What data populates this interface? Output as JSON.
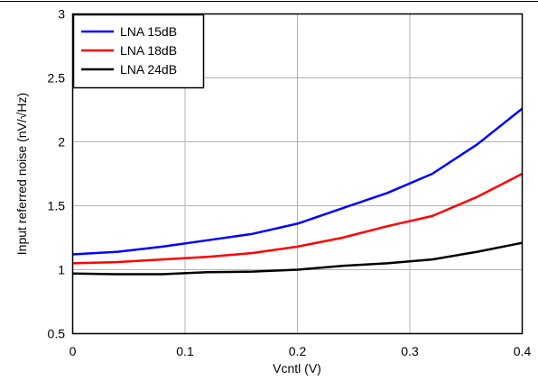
{
  "chart_data": {
    "type": "line",
    "title": "",
    "xlabel": "Vcntl (V)",
    "ylabel": "Input referred noise (nV/√Hz)",
    "xlim": [
      0,
      0.4
    ],
    "ylim": [
      0.5,
      3
    ],
    "x_ticks": [
      0,
      0.1,
      0.2,
      0.3,
      0.4
    ],
    "x_tick_labels": [
      "0",
      "0.1",
      "0.2",
      "0.3",
      "0.4"
    ],
    "y_ticks": [
      0.5,
      1,
      1.5,
      2,
      2.5,
      3
    ],
    "y_tick_labels": [
      "0.5",
      "1",
      "1.5",
      "2",
      "2.5",
      "3"
    ],
    "grid": true,
    "legend_position": "top-left",
    "series": [
      {
        "name": "LNA 15dB",
        "color": "#0000ff",
        "x": [
          0,
          0.04,
          0.08,
          0.12,
          0.16,
          0.2,
          0.24,
          0.28,
          0.32,
          0.36,
          0.4
        ],
        "values": [
          1.12,
          1.14,
          1.18,
          1.23,
          1.28,
          1.36,
          1.48,
          1.6,
          1.75,
          1.98,
          2.26
        ]
      },
      {
        "name": "LNA 18dB",
        "color": "#ff0000",
        "x": [
          0,
          0.04,
          0.08,
          0.12,
          0.16,
          0.2,
          0.24,
          0.28,
          0.32,
          0.36,
          0.4
        ],
        "values": [
          1.05,
          1.06,
          1.08,
          1.1,
          1.13,
          1.18,
          1.25,
          1.34,
          1.42,
          1.57,
          1.75
        ]
      },
      {
        "name": "LNA 24dB",
        "color": "#000000",
        "x": [
          0,
          0.04,
          0.08,
          0.12,
          0.16,
          0.2,
          0.24,
          0.28,
          0.32,
          0.36,
          0.4
        ],
        "values": [
          0.97,
          0.965,
          0.965,
          0.98,
          0.985,
          1.0,
          1.03,
          1.05,
          1.08,
          1.14,
          1.21
        ]
      }
    ]
  }
}
